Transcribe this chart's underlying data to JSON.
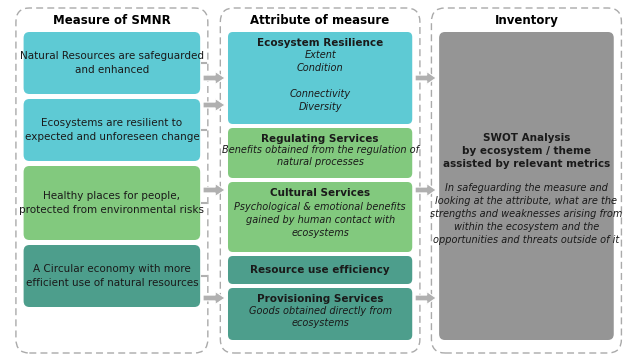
{
  "bg_color": "#ffffff",
  "col1_header": "Measure of SMNR",
  "col2_header": "Attribute of measure",
  "col3_header": "Inventory",
  "measures": [
    "Natural Resources are safeguarded\nand enhanced",
    "Ecosystems are resilient to\nexpected and unforeseen change",
    "Healthy places for people,\nprotected from environmental risks",
    "A Circular economy with more\nefficient use of natural resources"
  ],
  "measure_colors": [
    "#5ecad4",
    "#5ecad4",
    "#82c97e",
    "#4d9e8c"
  ],
  "attributes": [
    {
      "title": "Ecosystem Resilience",
      "subtitle": "Extent\nCondition\n\nConnectivity\nDiversity",
      "color": "#5ecad4"
    },
    {
      "title": "Regulating Services",
      "subtitle": "Benefits obtained from the regulation of\nnatural processes",
      "color": "#82c97e"
    },
    {
      "title": "Cultural Services",
      "subtitle": "Psychological & emotional benefits\ngained by human contact with\necosystems",
      "color": "#82c97e"
    },
    {
      "title": "Resource use efficiency",
      "subtitle": "",
      "color": "#4d9e8c"
    },
    {
      "title": "Provisioning Services",
      "subtitle": "Goods obtained directly from\necosystems",
      "color": "#4d9e8c"
    }
  ],
  "inventory_title_bold": "SWOT Analysis\nby ecosystem / theme\nassisted by relevant metrics",
  "inventory_body_italic": "In safeguarding the measure and\nlooking at the attribute, what are the\nstrengths and weaknesses arising from\nwithin the ecosystem and the\nopportunities and threats outside of it",
  "inventory_color": "#959595",
  "arrow_color": "#b0b0b0",
  "dash_color": "#aaaaaa",
  "header_fontsize": 8.5,
  "measure_fontsize": 7.5,
  "attr_title_fontsize": 7.5,
  "attr_sub_fontsize": 7.0,
  "inv_title_fontsize": 7.5,
  "inv_body_fontsize": 7.0,
  "measure_text_color": "#1a1a1a",
  "attr_text_color": "#1a1a1a",
  "inv_text_color": "#1a1a1a"
}
